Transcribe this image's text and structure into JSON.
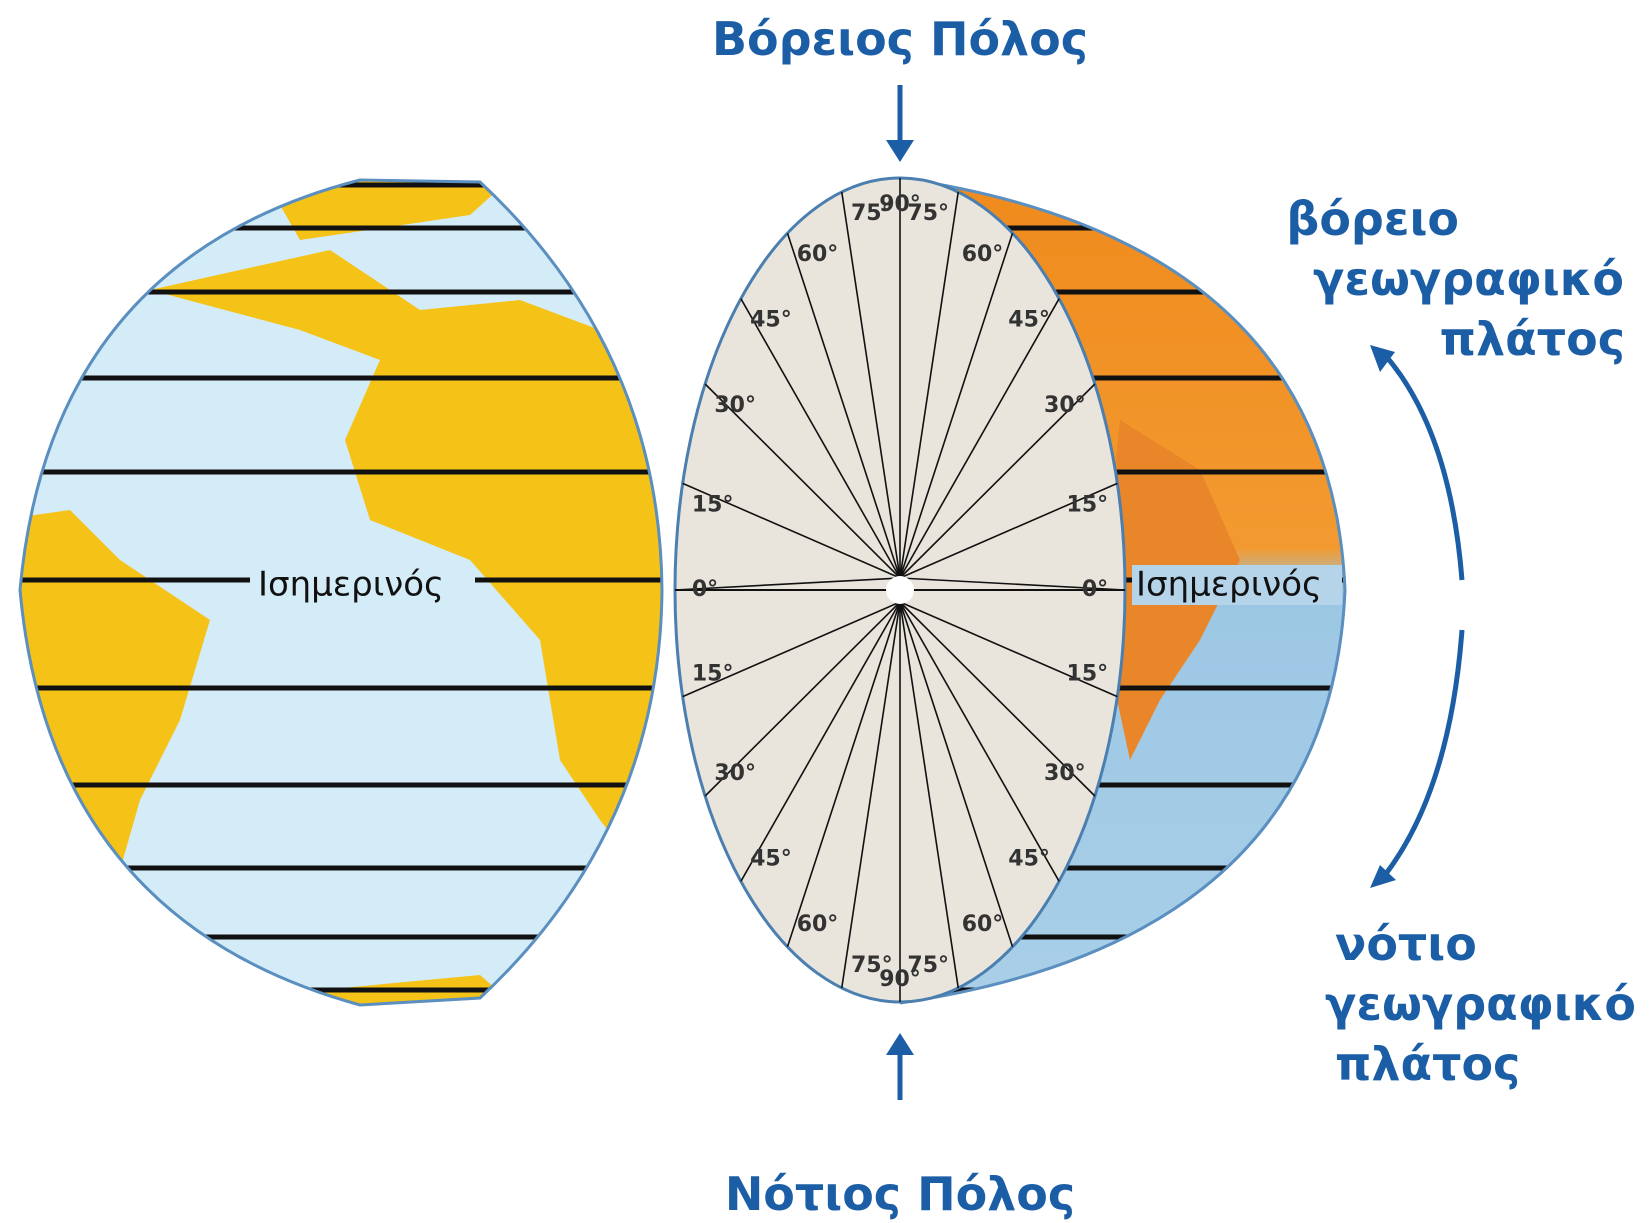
{
  "labels": {
    "north_pole": "Βόρειος Πόλος",
    "south_pole": "Νότιος Πόλος",
    "north_latitude": [
      "βόρειο",
      "γεωγραφικό",
      "πλάτος"
    ],
    "south_latitude": [
      "νότιο",
      "γεωγραφικό",
      "πλάτος"
    ],
    "equator_left": "Ισημερινός",
    "equator_right": "Ισημερινός"
  },
  "degrees": {
    "top": "90°",
    "bottom": "90°",
    "left": [
      "75°",
      "60°",
      "45°",
      "30°",
      "15°",
      "0°",
      "15°",
      "30°",
      "45°",
      "60°",
      "75°"
    ],
    "right": [
      "75°",
      "60°",
      "45°",
      "30°",
      "15°",
      "0°",
      "15°",
      "30°",
      "45°",
      "60°",
      "75°"
    ]
  }
}
